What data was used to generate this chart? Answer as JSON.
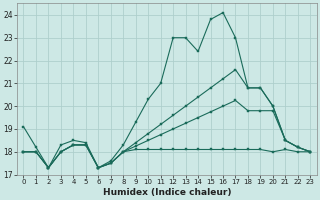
{
  "xlabel": "Humidex (Indice chaleur)",
  "background_color": "#cde8e5",
  "grid_color": "#aecfcc",
  "line_color": "#1a6b5a",
  "xlim": [
    -0.5,
    23.5
  ],
  "ylim": [
    17.0,
    24.5
  ],
  "yticks": [
    17,
    18,
    19,
    20,
    21,
    22,
    23,
    24
  ],
  "xticks": [
    0,
    1,
    2,
    3,
    4,
    5,
    6,
    7,
    8,
    9,
    10,
    11,
    12,
    13,
    14,
    15,
    16,
    17,
    18,
    19,
    20,
    21,
    22,
    23
  ],
  "series": [
    {
      "x": [
        0,
        1,
        2,
        3,
        4,
        5,
        6,
        7,
        8,
        9,
        10,
        11,
        12,
        13,
        14,
        15,
        16,
        17,
        18,
        19,
        20,
        21,
        22,
        23
      ],
      "y": [
        19.1,
        18.2,
        17.3,
        18.3,
        18.5,
        18.4,
        17.3,
        17.6,
        18.3,
        19.3,
        20.3,
        21.0,
        23.0,
        23.0,
        22.4,
        23.8,
        24.1,
        23.0,
        20.8,
        20.8,
        20.0,
        18.5,
        18.2,
        18.0
      ]
    },
    {
      "x": [
        0,
        1,
        2,
        3,
        4,
        5,
        6,
        7,
        8,
        9,
        10,
        11,
        12,
        13,
        14,
        15,
        16,
        17,
        18,
        19,
        20,
        21,
        22,
        23
      ],
      "y": [
        18.0,
        18.0,
        17.3,
        18.0,
        18.3,
        18.3,
        17.3,
        17.5,
        18.0,
        18.1,
        18.1,
        18.1,
        18.1,
        18.1,
        18.1,
        18.1,
        18.1,
        18.1,
        18.1,
        18.1,
        18.0,
        18.1,
        18.0,
        18.0
      ]
    },
    {
      "x": [
        0,
        1,
        2,
        3,
        4,
        5,
        6,
        7,
        8,
        9,
        10,
        11,
        12,
        13,
        14,
        15,
        16,
        17,
        18,
        19,
        20,
        21,
        22,
        23
      ],
      "y": [
        18.0,
        18.0,
        17.3,
        18.0,
        18.3,
        18.3,
        17.3,
        17.5,
        18.0,
        18.4,
        18.8,
        19.2,
        19.6,
        20.0,
        20.4,
        20.8,
        21.2,
        21.6,
        20.8,
        20.8,
        20.0,
        18.5,
        18.2,
        18.0
      ]
    },
    {
      "x": [
        0,
        1,
        2,
        3,
        4,
        5,
        6,
        7,
        8,
        9,
        10,
        11,
        12,
        13,
        14,
        15,
        16,
        17,
        18,
        19,
        20,
        21,
        22,
        23
      ],
      "y": [
        18.0,
        18.0,
        17.3,
        18.0,
        18.3,
        18.3,
        17.3,
        17.5,
        18.0,
        18.25,
        18.5,
        18.75,
        19.0,
        19.25,
        19.5,
        19.75,
        20.0,
        20.25,
        19.8,
        19.8,
        19.8,
        18.5,
        18.2,
        18.0
      ]
    }
  ]
}
